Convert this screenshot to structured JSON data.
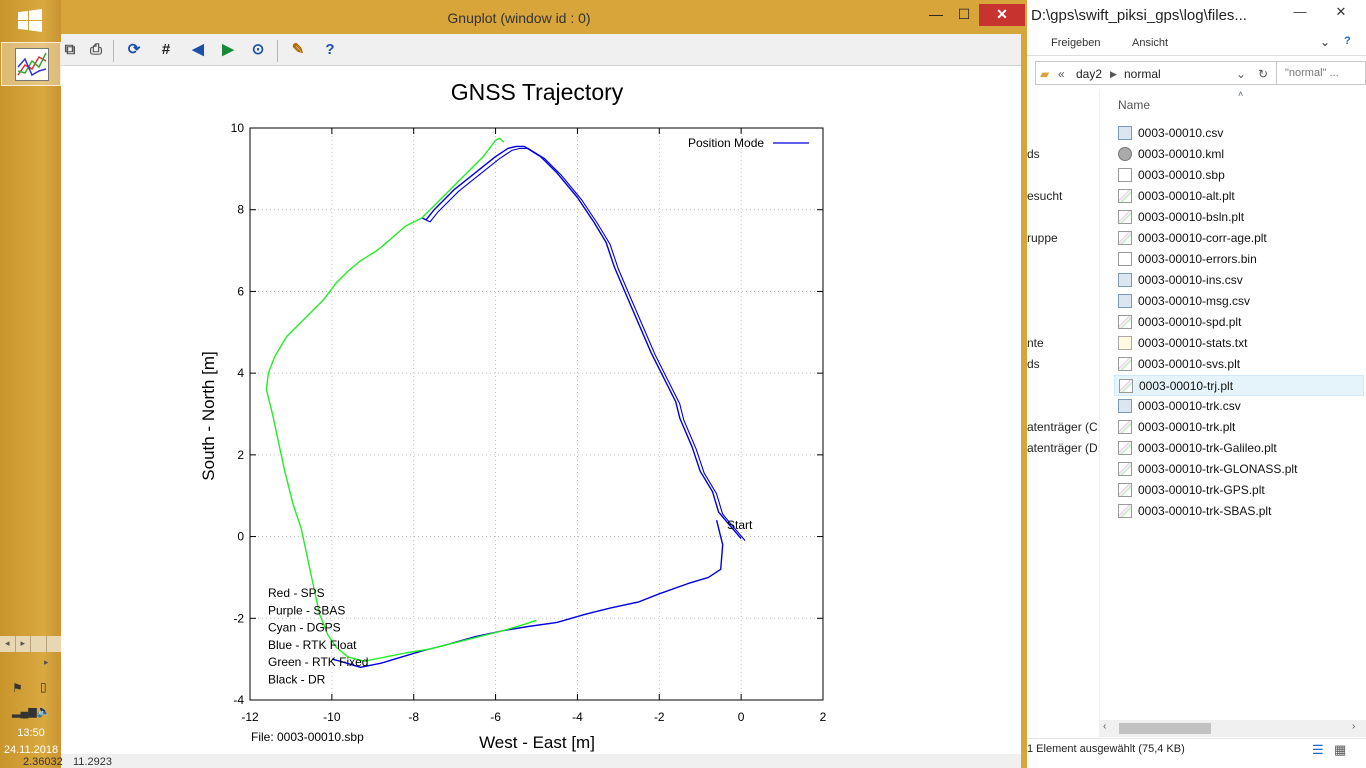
{
  "taskbar": {
    "clock_time": "13:50",
    "clock_date": "24.11.2018",
    "tray_left": "◂",
    "tray_right": "▸"
  },
  "gnuplot": {
    "window_title": "Gnuplot (window id : 0)",
    "close_glyph": "✕",
    "min_glyph": "—",
    "max_glyph": "☐",
    "status_x": "2.36032",
    "status_y": "11.2923",
    "file_label": "File: 0003-00010.sbp",
    "legend_mode": "Position Mode",
    "start_label": "Start",
    "mode_key": [
      "Red  - SPS",
      "Purple - SBAS",
      "Cyan - DGPS",
      "Blue - RTK Float",
      "Green - RTK Fixed",
      "Black - DR"
    ]
  },
  "explorer": {
    "title": "D:\\gps\\swift_piksi_gps\\log\\files...",
    "ribbon_share": "Freigeben",
    "ribbon_view": "Ansicht",
    "addr_folder": "day2",
    "addr_sub": "normal",
    "search_placeholder": "\"normal\" ...",
    "column_name": "Name",
    "nav_items": [
      "ds",
      "esucht",
      "ruppe",
      "nte",
      "ds",
      "atenträger (C:",
      "atenträger (D:"
    ],
    "files": [
      {
        "name": "0003-00010.csv",
        "type": "csv"
      },
      {
        "name": "0003-00010.kml",
        "type": "kml"
      },
      {
        "name": "0003-00010.sbp",
        "type": "sbp"
      },
      {
        "name": "0003-00010-alt.plt",
        "type": "plt"
      },
      {
        "name": "0003-00010-bsln.plt",
        "type": "plt"
      },
      {
        "name": "0003-00010-corr-age.plt",
        "type": "plt"
      },
      {
        "name": "0003-00010-errors.bin",
        "type": "bin"
      },
      {
        "name": "0003-00010-ins.csv",
        "type": "csv"
      },
      {
        "name": "0003-00010-msg.csv",
        "type": "csv"
      },
      {
        "name": "0003-00010-spd.plt",
        "type": "plt"
      },
      {
        "name": "0003-00010-stats.txt",
        "type": "txt"
      },
      {
        "name": "0003-00010-svs.plt",
        "type": "plt"
      },
      {
        "name": "0003-00010-trj.plt",
        "type": "plt",
        "selected": true
      },
      {
        "name": "0003-00010-trk.csv",
        "type": "csv"
      },
      {
        "name": "0003-00010-trk.plt",
        "type": "plt"
      },
      {
        "name": "0003-00010-trk-Galileo.plt",
        "type": "plt"
      },
      {
        "name": "0003-00010-trk-GLONASS.plt",
        "type": "plt"
      },
      {
        "name": "0003-00010-trk-GPS.plt",
        "type": "plt"
      },
      {
        "name": "0003-00010-trk-SBAS.plt",
        "type": "plt"
      }
    ],
    "status": "1 Element ausgewählt (75,4 KB)"
  },
  "chart_data": {
    "type": "line",
    "title": "GNSS Trajectory",
    "xlabel": "West - East [m]",
    "ylabel": "South - North [m]",
    "xlim": [
      -12,
      2
    ],
    "ylim": [
      -4,
      10
    ],
    "xticks": [
      -12,
      -10,
      -8,
      -6,
      -4,
      -2,
      0,
      2
    ],
    "yticks": [
      -4,
      -2,
      0,
      2,
      4,
      6,
      8,
      10
    ],
    "grid": true,
    "legend_position": "top-right",
    "colors": {
      "rtk_float": "#0000dd",
      "rtk_fixed": "#22ee22"
    },
    "series": [
      {
        "name": "Position Mode",
        "color": "#0000dd",
        "points": [
          [
            0,
            -0.05
          ],
          [
            -0.3,
            0.3
          ],
          [
            -0.55,
            0.6
          ],
          [
            -0.7,
            1.1
          ],
          [
            -1.0,
            1.6
          ],
          [
            -1.2,
            2.2
          ],
          [
            -1.5,
            2.9
          ],
          [
            -1.6,
            3.3
          ],
          [
            -1.9,
            3.9
          ],
          [
            -2.2,
            4.5
          ],
          [
            -2.5,
            5.2
          ],
          [
            -2.8,
            5.9
          ],
          [
            -3.1,
            6.6
          ],
          [
            -3.3,
            7.2
          ],
          [
            -3.6,
            7.7
          ],
          [
            -4.0,
            8.3
          ],
          [
            -4.5,
            8.9
          ],
          [
            -4.9,
            9.3
          ],
          [
            -5.3,
            9.55
          ],
          [
            -5.5,
            9.55
          ],
          [
            -5.7,
            9.5
          ],
          [
            -6.0,
            9.3
          ],
          [
            -6.5,
            8.9
          ],
          [
            -7.0,
            8.5
          ],
          [
            -7.5,
            8.0
          ],
          [
            -7.7,
            7.75
          ],
          [
            -7.8,
            7.8
          ]
        ]
      },
      {
        "name": "Position Mode",
        "color": "#0000dd",
        "points": [
          [
            -0.6,
            0.4
          ],
          [
            -0.45,
            -0.2
          ],
          [
            -0.5,
            -0.8
          ],
          [
            -0.8,
            -1.0
          ],
          [
            -1.3,
            -1.15
          ],
          [
            -2.0,
            -1.4
          ],
          [
            -2.5,
            -1.6
          ],
          [
            -3.2,
            -1.75
          ],
          [
            -3.8,
            -1.9
          ],
          [
            -4.5,
            -2.1
          ],
          [
            -5.2,
            -2.2
          ],
          [
            -5.8,
            -2.3
          ],
          [
            -6.5,
            -2.45
          ],
          [
            -7.2,
            -2.65
          ],
          [
            -7.8,
            -2.8
          ],
          [
            -8.3,
            -2.95
          ],
          [
            -8.8,
            -3.1
          ],
          [
            -9.3,
            -3.2
          ],
          [
            -9.8,
            -3.05
          ],
          [
            -10.0,
            -3.0
          ]
        ]
      },
      {
        "name": "",
        "color": "#22ee22",
        "points": [
          [
            -7.8,
            7.8
          ],
          [
            -8.2,
            7.6
          ],
          [
            -8.6,
            7.25
          ],
          [
            -8.9,
            7.0
          ],
          [
            -9.3,
            6.75
          ],
          [
            -9.6,
            6.5
          ],
          [
            -9.9,
            6.2
          ],
          [
            -10.2,
            5.8
          ],
          [
            -10.5,
            5.5
          ],
          [
            -10.8,
            5.2
          ],
          [
            -11.1,
            4.9
          ],
          [
            -11.4,
            4.4
          ],
          [
            -11.55,
            4.0
          ],
          [
            -11.6,
            3.6
          ],
          [
            -11.45,
            3.0
          ],
          [
            -11.3,
            2.3
          ],
          [
            -11.15,
            1.6
          ],
          [
            -10.95,
            0.8
          ],
          [
            -10.75,
            0.2
          ],
          [
            -10.6,
            -0.5
          ],
          [
            -10.45,
            -1.2
          ],
          [
            -10.3,
            -1.9
          ],
          [
            -10.1,
            -2.4
          ],
          [
            -9.9,
            -2.7
          ],
          [
            -9.6,
            -2.95
          ],
          [
            -9.2,
            -3.05
          ],
          [
            -8.7,
            -2.95
          ],
          [
            -8.2,
            -2.85
          ],
          [
            -7.6,
            -2.75
          ],
          [
            -7.0,
            -2.6
          ],
          [
            -6.4,
            -2.45
          ],
          [
            -5.8,
            -2.3
          ],
          [
            -5.3,
            -2.15
          ],
          [
            -5.0,
            -2.05
          ]
        ]
      },
      {
        "name": "",
        "color": "#22ee22",
        "points": [
          [
            -7.8,
            7.8
          ],
          [
            -7.5,
            8.1
          ],
          [
            -7.1,
            8.5
          ],
          [
            -6.7,
            8.9
          ],
          [
            -6.3,
            9.3
          ],
          [
            -6.0,
            9.7
          ],
          [
            -5.9,
            9.75
          ],
          [
            -5.8,
            9.65
          ]
        ]
      }
    ]
  }
}
